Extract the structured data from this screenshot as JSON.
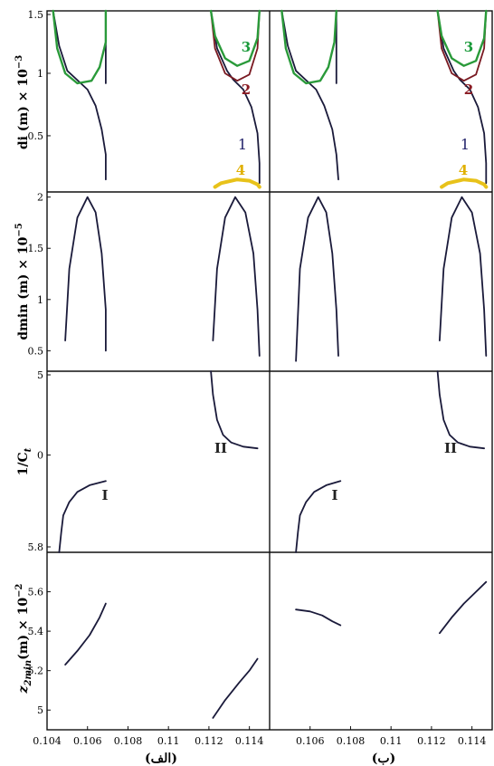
{
  "figure": {
    "column_labels": [
      "(الف)",
      "(ب)"
    ],
    "row_ylabels": [
      {
        "main": "di (m) × 10",
        "exp": "−3"
      },
      {
        "main": "dmin (m) × 10",
        "exp": "−5"
      },
      {
        "main": "1/C",
        "sub": "t"
      },
      {
        "main": "z",
        "sub": "2min",
        "main2": "(m) × 10",
        "exp": "−2"
      }
    ],
    "xticks": [
      "0.104",
      "0.106",
      "0.108",
      "0.11",
      "0.112",
      "0.114"
    ],
    "xticks_right": [
      "0.106",
      "0.108",
      "0.11",
      "0.112",
      "0.114"
    ],
    "row_yticks": [
      [
        "1.5",
        "1",
        "0.5"
      ],
      [
        "2",
        "1.5",
        "1",
        "0.5"
      ],
      [
        "5",
        "0",
        "5.8"
      ],
      [
        "5.6",
        "5.4",
        "5.2",
        "5"
      ]
    ],
    "colors": {
      "curve1": "#1a1a3a",
      "curve2": "#7a1a22",
      "curve3": "#2a9a3a",
      "curve4": "#e8c21a",
      "label1": "#22226a",
      "label2": "#8a1a22",
      "label3": "#1a9a3a",
      "label4": "#e0b000"
    }
  },
  "chart_data": [
    {
      "type": "line",
      "panel": "row1-left",
      "ylabel": "di (m) × 10^-3",
      "xlim": [
        0.104,
        0.115
      ],
      "ylim": [
        0.05,
        1.5
      ],
      "annotations": [
        "3",
        "2",
        "1",
        "4"
      ],
      "series": [
        {
          "name": "1",
          "color": "curve1",
          "segments": [
            [
              [
                0.1043,
                1.5
              ],
              [
                0.1046,
                1.22
              ],
              [
                0.105,
                1.02
              ],
              [
                0.1056,
                0.93
              ],
              [
                0.106,
                0.87
              ],
              [
                0.1064,
                0.74
              ],
              [
                0.1067,
                0.55
              ],
              [
                0.1069,
                0.35
              ],
              [
                0.1069,
                0.15
              ]
            ],
            [
              [
                0.1069,
                0.92
              ],
              [
                0.1069,
                1.5
              ]
            ],
            [
              [
                0.1121,
                1.5
              ],
              [
                0.1124,
                1.2
              ],
              [
                0.1129,
                1.02
              ],
              [
                0.1132,
                0.95
              ],
              [
                0.1137,
                0.87
              ],
              [
                0.1141,
                0.73
              ],
              [
                0.1144,
                0.52
              ],
              [
                0.1145,
                0.28
              ],
              [
                0.1145,
                0.12
              ]
            ]
          ]
        },
        {
          "name": "2",
          "color": "curve2",
          "segments": [
            [
              [
                0.1121,
                1.5
              ],
              [
                0.1123,
                1.2
              ],
              [
                0.1128,
                1.0
              ],
              [
                0.1134,
                0.94
              ],
              [
                0.114,
                0.99
              ],
              [
                0.1144,
                1.2
              ],
              [
                0.1145,
                1.5
              ]
            ]
          ]
        },
        {
          "name": "3",
          "color": "curve3",
          "segments": [
            [
              [
                0.1043,
                1.5
              ],
              [
                0.1045,
                1.2
              ],
              [
                0.1049,
                1.0
              ],
              [
                0.1055,
                0.92
              ],
              [
                0.1062,
                0.94
              ],
              [
                0.1066,
                1.05
              ],
              [
                0.1069,
                1.25
              ],
              [
                0.1069,
                1.5
              ]
            ],
            [
              [
                0.1121,
                1.5
              ],
              [
                0.1123,
                1.3
              ],
              [
                0.1128,
                1.12
              ],
              [
                0.1134,
                1.06
              ],
              [
                0.114,
                1.1
              ],
              [
                0.1144,
                1.28
              ],
              [
                0.1145,
                1.5
              ]
            ]
          ]
        },
        {
          "name": "4",
          "color": "curve4",
          "segments": [
            [
              [
                0.1123,
                0.09
              ],
              [
                0.1126,
                0.12
              ],
              [
                0.1134,
                0.15
              ],
              [
                0.114,
                0.14
              ],
              [
                0.1144,
                0.11
              ],
              [
                0.1145,
                0.09
              ]
            ]
          ]
        }
      ]
    },
    {
      "type": "line",
      "panel": "row1-right",
      "ylabel": "di (m) × 10^-3",
      "xlim": [
        0.104,
        0.115
      ],
      "ylim": [
        0.05,
        1.5
      ],
      "annotations": [
        "3",
        "2",
        "1",
        "4"
      ],
      "series": [
        {
          "name": "1",
          "color": "curve1",
          "segments": [
            [
              [
                0.1046,
                1.5
              ],
              [
                0.1049,
                1.22
              ],
              [
                0.1053,
                1.02
              ],
              [
                0.1059,
                0.93
              ],
              [
                0.1063,
                0.87
              ],
              [
                0.1067,
                0.74
              ],
              [
                0.1071,
                0.55
              ],
              [
                0.1073,
                0.35
              ],
              [
                0.1074,
                0.15
              ]
            ],
            [
              [
                0.1073,
                0.92
              ],
              [
                0.1073,
                1.5
              ]
            ],
            [
              [
                0.1123,
                1.5
              ],
              [
                0.1126,
                1.2
              ],
              [
                0.1131,
                1.02
              ],
              [
                0.1134,
                0.95
              ],
              [
                0.1139,
                0.87
              ],
              [
                0.1143,
                0.73
              ],
              [
                0.1146,
                0.52
              ],
              [
                0.1147,
                0.28
              ],
              [
                0.1147,
                0.12
              ]
            ]
          ]
        },
        {
          "name": "2",
          "color": "curve2",
          "segments": [
            [
              [
                0.1123,
                1.5
              ],
              [
                0.1125,
                1.2
              ],
              [
                0.113,
                1.0
              ],
              [
                0.1136,
                0.94
              ],
              [
                0.1142,
                0.99
              ],
              [
                0.1146,
                1.2
              ],
              [
                0.1147,
                1.5
              ]
            ]
          ]
        },
        {
          "name": "3",
          "color": "curve3",
          "segments": [
            [
              [
                0.1046,
                1.5
              ],
              [
                0.1048,
                1.2
              ],
              [
                0.1052,
                1.0
              ],
              [
                0.1058,
                0.92
              ],
              [
                0.1065,
                0.94
              ],
              [
                0.1069,
                1.05
              ],
              [
                0.1072,
                1.25
              ],
              [
                0.1073,
                1.5
              ]
            ],
            [
              [
                0.1123,
                1.5
              ],
              [
                0.1125,
                1.3
              ],
              [
                0.113,
                1.12
              ],
              [
                0.1136,
                1.06
              ],
              [
                0.1142,
                1.1
              ],
              [
                0.1146,
                1.28
              ],
              [
                0.1147,
                1.5
              ]
            ]
          ]
        },
        {
          "name": "4",
          "color": "curve4",
          "segments": [
            [
              [
                0.1125,
                0.09
              ],
              [
                0.1128,
                0.12
              ],
              [
                0.1136,
                0.15
              ],
              [
                0.1142,
                0.14
              ],
              [
                0.1146,
                0.11
              ],
              [
                0.1147,
                0.09
              ]
            ]
          ]
        }
      ]
    },
    {
      "type": "line",
      "panel": "row2-left",
      "ylabel": "dmin (m) × 10^-5",
      "xlim": [
        0.104,
        0.115
      ],
      "ylim": [
        0.3,
        2.05
      ],
      "series": [
        {
          "name": "",
          "color": "curve1",
          "segments": [
            [
              [
                0.1049,
                0.6
              ],
              [
                0.1051,
                1.3
              ],
              [
                0.1055,
                1.8
              ],
              [
                0.106,
                2.0
              ],
              [
                0.1064,
                1.85
              ],
              [
                0.1067,
                1.45
              ],
              [
                0.1069,
                0.9
              ],
              [
                0.1069,
                0.5
              ]
            ],
            [
              [
                0.1122,
                0.6
              ],
              [
                0.1124,
                1.3
              ],
              [
                0.1128,
                1.8
              ],
              [
                0.1133,
                2.0
              ],
              [
                0.1138,
                1.85
              ],
              [
                0.1142,
                1.45
              ],
              [
                0.1144,
                0.9
              ],
              [
                0.1145,
                0.45
              ]
            ]
          ]
        }
      ]
    },
    {
      "type": "line",
      "panel": "row2-right",
      "ylabel": "dmin (m) × 10^-5",
      "xlim": [
        0.104,
        0.115
      ],
      "ylim": [
        0.3,
        2.05
      ],
      "series": [
        {
          "name": "",
          "color": "curve1",
          "segments": [
            [
              [
                0.1053,
                0.4
              ],
              [
                0.1055,
                1.3
              ],
              [
                0.1059,
                1.8
              ],
              [
                0.1064,
                2.0
              ],
              [
                0.1068,
                1.85
              ],
              [
                0.1071,
                1.45
              ],
              [
                0.1073,
                0.9
              ],
              [
                0.1074,
                0.45
              ]
            ],
            [
              [
                0.1124,
                0.6
              ],
              [
                0.1126,
                1.3
              ],
              [
                0.113,
                1.8
              ],
              [
                0.1135,
                2.0
              ],
              [
                0.114,
                1.85
              ],
              [
                0.1144,
                1.45
              ],
              [
                0.1146,
                0.9
              ],
              [
                0.1147,
                0.45
              ]
            ]
          ]
        }
      ]
    },
    {
      "type": "line",
      "panel": "row3-left",
      "ylabel": "1/C_t",
      "xlim": [
        0.104,
        0.115
      ],
      "ylim": [
        -5.8,
        5
      ],
      "annotations": [
        "I",
        "II"
      ],
      "series": [
        {
          "name": "I",
          "color": "curve1",
          "segments": [
            [
              [
                0.1046,
                -5.8
              ],
              [
                0.1047,
                -4.6
              ],
              [
                0.1048,
                -3.6
              ],
              [
                0.1051,
                -2.8
              ],
              [
                0.1055,
                -2.2
              ],
              [
                0.1061,
                -1.8
              ],
              [
                0.1069,
                -1.55
              ]
            ]
          ]
        },
        {
          "name": "II",
          "color": "curve1",
          "segments": [
            [
              [
                0.1121,
                5
              ],
              [
                0.1122,
                3.6
              ],
              [
                0.1124,
                2.1
              ],
              [
                0.1127,
                1.2
              ],
              [
                0.1131,
                0.75
              ],
              [
                0.1137,
                0.5
              ],
              [
                0.1144,
                0.4
              ]
            ]
          ]
        }
      ]
    },
    {
      "type": "line",
      "panel": "row3-right",
      "ylabel": "1/C_t",
      "xlim": [
        0.104,
        0.115
      ],
      "ylim": [
        -5.8,
        5
      ],
      "annotations": [
        "I",
        "II"
      ],
      "series": [
        {
          "name": "I",
          "color": "curve1",
          "segments": [
            [
              [
                0.1053,
                -5.8
              ],
              [
                0.1054,
                -4.6
              ],
              [
                0.1055,
                -3.6
              ],
              [
                0.1058,
                -2.8
              ],
              [
                0.1062,
                -2.2
              ],
              [
                0.1068,
                -1.8
              ],
              [
                0.1075,
                -1.55
              ]
            ]
          ]
        },
        {
          "name": "II",
          "color": "curve1",
          "segments": [
            [
              [
                0.1123,
                5
              ],
              [
                0.1124,
                3.6
              ],
              [
                0.1126,
                2.1
              ],
              [
                0.1129,
                1.2
              ],
              [
                0.1133,
                0.75
              ],
              [
                0.1139,
                0.5
              ],
              [
                0.1146,
                0.4
              ]
            ]
          ]
        }
      ]
    },
    {
      "type": "line",
      "panel": "row4-left",
      "ylabel": "z_2min (m) × 10^-2",
      "xlim": [
        0.104,
        0.115
      ],
      "ylim": [
        4.9,
        5.8
      ],
      "series": [
        {
          "name": "",
          "color": "curve1",
          "segments": [
            [
              [
                0.1049,
                5.23
              ],
              [
                0.1055,
                5.3
              ],
              [
                0.1061,
                5.38
              ],
              [
                0.1066,
                5.47
              ],
              [
                0.1069,
                5.54
              ]
            ],
            [
              [
                0.1122,
                4.96
              ],
              [
                0.1128,
                5.05
              ],
              [
                0.1135,
                5.14
              ],
              [
                0.114,
                5.2
              ],
              [
                0.1144,
                5.26
              ]
            ]
          ]
        }
      ]
    },
    {
      "type": "line",
      "panel": "row4-right",
      "ylabel": "z_2min (m) × 10^-2",
      "xlim": [
        0.104,
        0.115
      ],
      "ylim": [
        4.9,
        5.8
      ],
      "series": [
        {
          "name": "",
          "color": "curve1",
          "segments": [
            [
              [
                0.1053,
                5.51
              ],
              [
                0.106,
                5.5
              ],
              [
                0.1066,
                5.48
              ],
              [
                0.1071,
                5.45
              ],
              [
                0.1075,
                5.43
              ]
            ],
            [
              [
                0.1124,
                5.39
              ],
              [
                0.113,
                5.47
              ],
              [
                0.1136,
                5.54
              ],
              [
                0.1142,
                5.6
              ],
              [
                0.1147,
                5.65
              ]
            ]
          ]
        }
      ]
    }
  ]
}
